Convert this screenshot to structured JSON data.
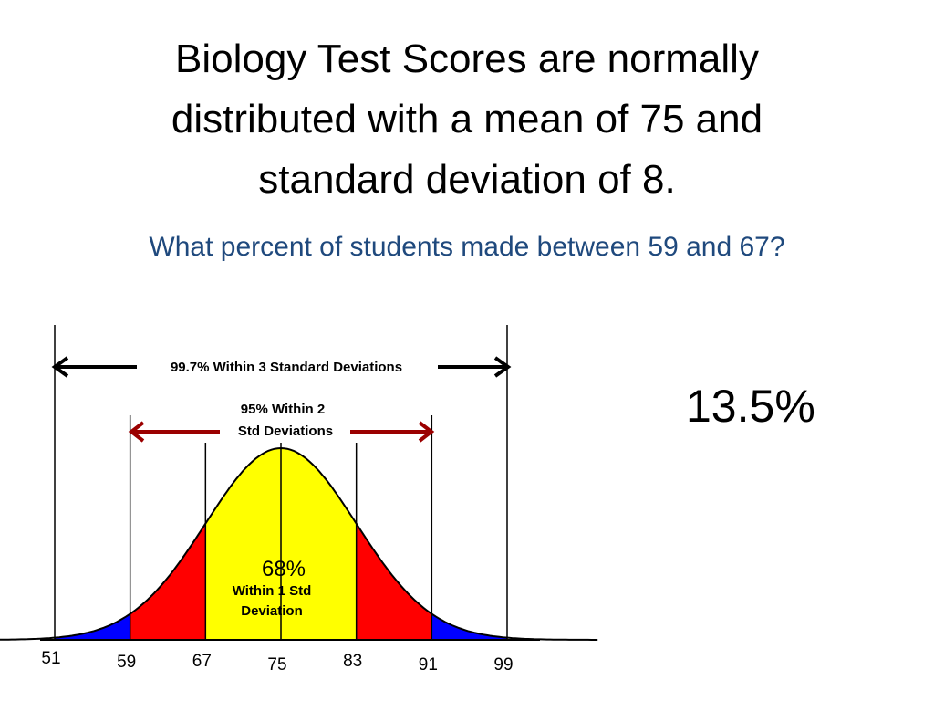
{
  "title_lines": [
    "Biology Test Scores are normally",
    "distributed with a mean of 75 and",
    "standard deviation of 8."
  ],
  "question": "What percent of students made between 59 and 67?",
  "answer": "13.5%",
  "diagram": {
    "label_997": "99.7% Within 3 Standard Deviations",
    "label_95_line1": "95% Within 2",
    "label_95_line2": "Std Deviations",
    "label_68_pct": "68%",
    "label_68_line1": "Within 1 Std",
    "label_68_line2": "Deviation",
    "colors": {
      "center_band": "#ffff00",
      "middle_band": "#ff0000",
      "tail_band": "#0000ff",
      "arrow_red": "#9b0000",
      "arrow_black": "#000000"
    }
  },
  "chart_data": {
    "type": "area",
    "mean": 75,
    "sd": 8,
    "ticks": [
      "51",
      "59",
      "67",
      "75",
      "83",
      "91",
      "99"
    ],
    "regions": [
      {
        "from": 51,
        "to": 59,
        "color": "#0000ff"
      },
      {
        "from": 59,
        "to": 67,
        "color": "#ff0000"
      },
      {
        "from": 67,
        "to": 83,
        "color": "#ffff00"
      },
      {
        "from": 83,
        "to": 91,
        "color": "#ff0000"
      },
      {
        "from": 91,
        "to": 99,
        "color": "#0000ff"
      }
    ]
  }
}
